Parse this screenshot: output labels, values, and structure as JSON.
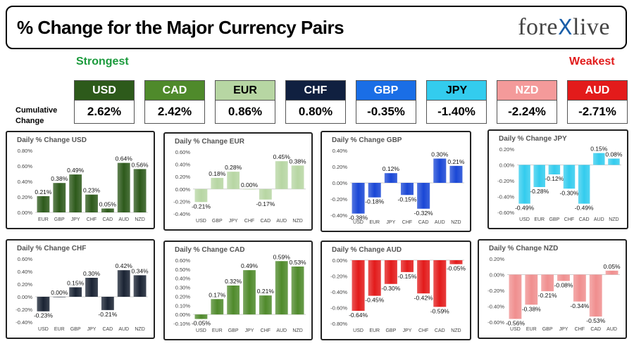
{
  "header": {
    "title": "% Change for the Major Currency Pairs",
    "logo_left": "fore",
    "logo_x": "X",
    "logo_right": "live"
  },
  "labels": {
    "strongest": "Strongest",
    "weakest": "Weakest",
    "cumulative": "Cumulative",
    "change": "Change"
  },
  "currencies": [
    {
      "code": "USD",
      "value": "2.62%",
      "color": "#2d5a1b",
      "text": "#ffffff"
    },
    {
      "code": "CAD",
      "value": "2.42%",
      "color": "#4f8a2b",
      "text": "#ffffff"
    },
    {
      "code": "EUR",
      "value": "0.86%",
      "color": "#b7d6a3",
      "text": "#000000"
    },
    {
      "code": "CHF",
      "value": "0.80%",
      "color": "#102040",
      "text": "#ffffff"
    },
    {
      "code": "GBP",
      "value": "-0.35%",
      "color": "#1a6ee6",
      "text": "#ffffff"
    },
    {
      "code": "JPY",
      "value": "-1.40%",
      "color": "#33ccee",
      "text": "#000000"
    },
    {
      "code": "NZD",
      "value": "-2.24%",
      "color": "#f49a9a",
      "text": "#ffffff"
    },
    {
      "code": "AUD",
      "value": "-2.71%",
      "color": "#e31b1b",
      "text": "#ffffff"
    }
  ],
  "chart_data": [
    {
      "type": "bar",
      "title": "Daily % Change USD",
      "categories": [
        "EUR",
        "GBP",
        "JPY",
        "CHF",
        "CAD",
        "AUD",
        "NZD"
      ],
      "values": [
        0.21,
        0.38,
        0.49,
        0.23,
        0.05,
        0.64,
        0.56
      ],
      "labels": [
        "0.21%",
        "0.38%",
        "0.49%",
        "0.23%",
        "0.05%",
        "0.64%",
        "0.56%"
      ],
      "yticks": [
        "0.00%",
        "0.20%",
        "0.40%",
        "0.60%",
        "0.80%"
      ],
      "ylim": [
        0,
        0.8
      ],
      "color": "#2d5a1b"
    },
    {
      "type": "bar",
      "title": "Daily % Change EUR",
      "categories": [
        "USD",
        "GBP",
        "JPY",
        "CHF",
        "CAD",
        "AUD",
        "NZD"
      ],
      "values": [
        -0.21,
        0.18,
        0.28,
        0.0,
        -0.17,
        0.45,
        0.38
      ],
      "labels": [
        "-0.21%",
        "0.18%",
        "0.28%",
        "0.00%",
        "-0.17%",
        "0.45%",
        "0.38%"
      ],
      "yticks": [
        "-0.40%",
        "-0.20%",
        "0.00%",
        "0.20%",
        "0.40%",
        "0.60%"
      ],
      "ylim": [
        -0.4,
        0.6
      ],
      "color": "#b7d6a3"
    },
    {
      "type": "bar",
      "title": "Daily % Change GBP",
      "categories": [
        "USD",
        "EUR",
        "JPY",
        "CHF",
        "CAD",
        "AUD",
        "NZD"
      ],
      "values": [
        -0.38,
        -0.18,
        0.12,
        -0.15,
        -0.32,
        0.3,
        0.21
      ],
      "labels": [
        "-0.38%",
        "-0.18%",
        "0.12%",
        "-0.15%",
        "-0.32%",
        "0.30%",
        "0.21%"
      ],
      "yticks": [
        "-0.40%",
        "-0.20%",
        "0.00%",
        "0.20%",
        "0.40%"
      ],
      "ylim": [
        -0.4,
        0.4
      ],
      "color": "#1a47d6"
    },
    {
      "type": "bar",
      "title": "Daily % Change JPY",
      "categories": [
        "USD",
        "EUR",
        "GBP",
        "CHF",
        "CAD",
        "AUD",
        "NZD"
      ],
      "values": [
        -0.49,
        -0.28,
        -0.12,
        -0.3,
        -0.49,
        0.15,
        0.08
      ],
      "labels": [
        "-0.49%",
        "-0.28%",
        "-0.12%",
        "-0.30%",
        "-0.49%",
        "0.15%",
        "0.08%"
      ],
      "yticks": [
        "-0.60%",
        "-0.40%",
        "-0.20%",
        "0.00%",
        "0.20%"
      ],
      "ylim": [
        -0.6,
        0.2
      ],
      "color": "#33ccee"
    },
    {
      "type": "bar",
      "title": "Daily % Change CHF",
      "categories": [
        "USD",
        "EUR",
        "GBP",
        "JPY",
        "CAD",
        "AUD",
        "NZD"
      ],
      "values": [
        -0.23,
        0.0,
        0.15,
        0.3,
        -0.21,
        0.42,
        0.34
      ],
      "labels": [
        "-0.23%",
        "0.00%",
        "0.15%",
        "0.30%",
        "-0.21%",
        "0.42%",
        "0.34%"
      ],
      "yticks": [
        "-0.40%",
        "-0.20%",
        "0.00%",
        "0.20%",
        "0.40%",
        "0.60%"
      ],
      "ylim": [
        -0.4,
        0.6
      ],
      "color": "#1a2333"
    },
    {
      "type": "bar",
      "title": "Daily % Change CAD",
      "categories": [
        "USD",
        "EUR",
        "GBP",
        "JPY",
        "CHF",
        "AUD",
        "NZD"
      ],
      "values": [
        -0.05,
        0.17,
        0.32,
        0.49,
        0.21,
        0.59,
        0.53
      ],
      "labels": [
        "-0.05%",
        "0.17%",
        "0.32%",
        "0.49%",
        "0.21%",
        "0.59%",
        "0.53%"
      ],
      "yticks": [
        "-0.10%",
        "0.00%",
        "0.10%",
        "0.20%",
        "0.30%",
        "0.40%",
        "0.50%",
        "0.60%"
      ],
      "ylim": [
        -0.1,
        0.6
      ],
      "color": "#4f8a2b"
    },
    {
      "type": "bar",
      "title": "Daily % Change AUD",
      "categories": [
        "USD",
        "EUR",
        "GBP",
        "JPY",
        "CHF",
        "CAD",
        "NZD"
      ],
      "values": [
        -0.64,
        -0.45,
        -0.3,
        -0.15,
        -0.42,
        -0.59,
        -0.05
      ],
      "labels": [
        "-0.64%",
        "-0.45%",
        "-0.30%",
        "-0.15%",
        "-0.42%",
        "-0.59%",
        "-0.05%"
      ],
      "yticks": [
        "-0.80%",
        "-0.60%",
        "-0.40%",
        "-0.20%",
        "0.00%"
      ],
      "ylim": [
        -0.8,
        0.0
      ],
      "color": "#e31b1b"
    },
    {
      "type": "bar",
      "title": "Daily % Change NZD",
      "categories": [
        "USD",
        "EUR",
        "GBP",
        "JPY",
        "CHF",
        "CAD",
        "AUD"
      ],
      "values": [
        -0.56,
        -0.38,
        -0.21,
        -0.08,
        -0.34,
        -0.53,
        0.05
      ],
      "labels": [
        "-0.56%",
        "-0.38%",
        "-0.21%",
        "-0.08%",
        "-0.34%",
        "-0.53%",
        "0.05%"
      ],
      "yticks": [
        "-0.60%",
        "-0.40%",
        "-0.20%",
        "0.00%",
        "0.20%"
      ],
      "ylim": [
        -0.6,
        0.2
      ],
      "color": "#f08f8f"
    }
  ]
}
